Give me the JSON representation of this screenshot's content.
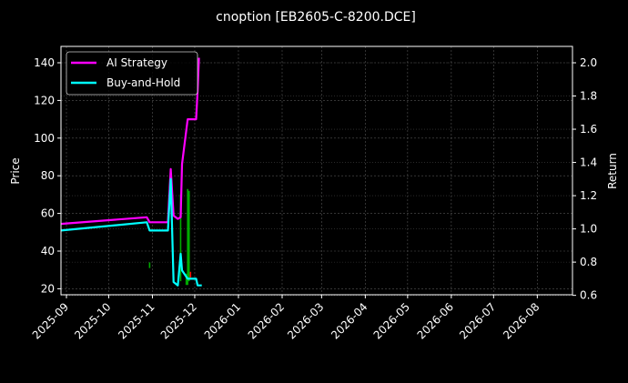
{
  "chart_data": {
    "type": "line",
    "title": "cnoption [EB2605-C-8200.DCE]",
    "xlabel": "",
    "ylabel": "Price",
    "y2label": "Return",
    "x_ticks": [
      "2025-09",
      "2025-10",
      "2025-11",
      "2025-12",
      "2026-01",
      "2026-02",
      "2026-03",
      "2026-04",
      "2026-05",
      "2026-06",
      "2026-07",
      "2026-08"
    ],
    "y_ticks": [
      "20",
      "40",
      "60",
      "80",
      "100",
      "120",
      "140"
    ],
    "y2_ticks": [
      "0.6",
      "0.8",
      "1.0",
      "1.2",
      "1.4",
      "1.6",
      "1.8",
      "2.0"
    ],
    "ylim": [
      3,
      149
    ],
    "y2lim": [
      0.44,
      2.1
    ],
    "grid": true,
    "legend_position": "upper left",
    "series": [
      {
        "name": "AI Strategy",
        "axis": "right",
        "color": "#ff00ff",
        "x": [
          "2025-08-28",
          "2025-10-28",
          "2025-10-30",
          "2025-11-12",
          "2025-11-14",
          "2025-11-16",
          "2025-11-19",
          "2025-11-21",
          "2025-11-22",
          "2025-11-26",
          "2025-12-02",
          "2025-12-03",
          "2025-12-04"
        ],
        "values": [
          1.03,
          1.07,
          1.04,
          1.04,
          1.36,
          1.08,
          1.06,
          1.07,
          1.39,
          1.66,
          1.66,
          1.83,
          2.03
        ]
      },
      {
        "name": "Buy-and-Hold",
        "axis": "right",
        "color": "#00ffff",
        "x": [
          "2025-08-28",
          "2025-10-28",
          "2025-10-30",
          "2025-11-12",
          "2025-11-14",
          "2025-11-16",
          "2025-11-19",
          "2025-11-21",
          "2025-11-22",
          "2025-11-26",
          "2025-12-02",
          "2025-12-03",
          "2025-12-06"
        ],
        "values": [
          0.99,
          1.04,
          0.99,
          0.99,
          1.3,
          0.68,
          0.66,
          0.85,
          0.75,
          0.7,
          0.7,
          0.66,
          0.66
        ]
      }
    ],
    "candles": [
      {
        "x": "2025-10-30",
        "low": 31,
        "high": 34,
        "color": "#00aa00"
      },
      {
        "x": "2025-11-21",
        "low": 24,
        "high": 70,
        "color": "#00aa00"
      },
      {
        "x": "2025-11-26",
        "low": 22,
        "high": 73,
        "color": "#00aa00"
      },
      {
        "x": "2025-11-27",
        "low": 24,
        "high": 72,
        "color": "#00aa00"
      },
      {
        "x": "2025-11-25",
        "low": 22,
        "high": 28,
        "color": "#00aa00"
      },
      {
        "x": "2025-11-28",
        "low": 26,
        "high": 29,
        "color": "#ff0000"
      }
    ]
  },
  "legend": {
    "items": [
      {
        "label": "AI Strategy",
        "color": "#ff00ff"
      },
      {
        "label": "Buy-and-Hold",
        "color": "#00ffff"
      }
    ]
  }
}
